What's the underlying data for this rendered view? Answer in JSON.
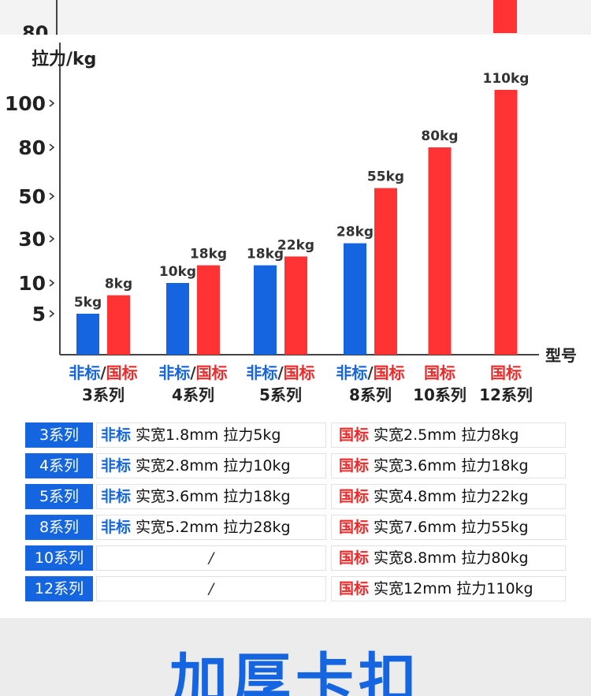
{
  "chart_data": {
    "type": "bar",
    "ylabel": "拉力/kg",
    "xlabel": "型号",
    "yticks": [
      5,
      10,
      30,
      50,
      80,
      100
    ],
    "top_partial_tick": "80",
    "categories": [
      {
        "group": [
          "非标",
          "/",
          "国标"
        ],
        "series": "3系列"
      },
      {
        "group": [
          "非标",
          "/",
          "国标"
        ],
        "series": "4系列"
      },
      {
        "group": [
          "非标",
          "/",
          "国标"
        ],
        "series": "5系列"
      },
      {
        "group": [
          "非标",
          "/",
          "国标"
        ],
        "series": "8系列"
      },
      {
        "group": [
          "",
          "",
          "国标"
        ],
        "series": "10系列"
      },
      {
        "group": [
          "",
          "",
          "国标"
        ],
        "series": "12系列"
      }
    ],
    "series": [
      {
        "name": "非标",
        "color": "#1565e0",
        "values": [
          5,
          10,
          18,
          28,
          null,
          null
        ],
        "labels": [
          "5kg",
          "10kg",
          "18kg",
          "28kg",
          "",
          ""
        ]
      },
      {
        "name": "国标",
        "color": "#ff3333",
        "values": [
          8,
          18,
          22,
          55,
          80,
          110
        ],
        "labels": [
          "8kg",
          "18kg",
          "22kg",
          "55kg",
          "80kg",
          "110kg"
        ]
      }
    ]
  },
  "table": {
    "rows": [
      {
        "series": "3系列",
        "ns_tag": "非标",
        "ns_text": " 实宽1.8mm 拉力5kg",
        "gb_tag": "国标",
        "gb_text": " 实宽2.5mm 拉力8kg"
      },
      {
        "series": "4系列",
        "ns_tag": "非标",
        "ns_text": " 实宽2.8mm 拉力10kg",
        "gb_tag": "国标",
        "gb_text": " 实宽3.6mm 拉力18kg"
      },
      {
        "series": "5系列",
        "ns_tag": "非标",
        "ns_text": " 实宽3.6mm 拉力18kg",
        "gb_tag": "国标",
        "gb_text": " 实宽4.8mm 拉力22kg"
      },
      {
        "series": "8系列",
        "ns_tag": "非标",
        "ns_text": " 实宽5.2mm 拉力28kg",
        "gb_tag": "国标",
        "gb_text": " 实宽7.6mm 拉力55kg"
      },
      {
        "series": "10系列",
        "ns_tag": "",
        "ns_text": "/",
        "gb_tag": "国标",
        "gb_text": " 实宽8.8mm 拉力80kg"
      },
      {
        "series": "12系列",
        "ns_tag": "",
        "ns_text": "/",
        "gb_tag": "国标",
        "gb_text": " 实宽12mm 拉力110kg"
      }
    ]
  },
  "footer": {
    "title": "加厚卡扣"
  }
}
